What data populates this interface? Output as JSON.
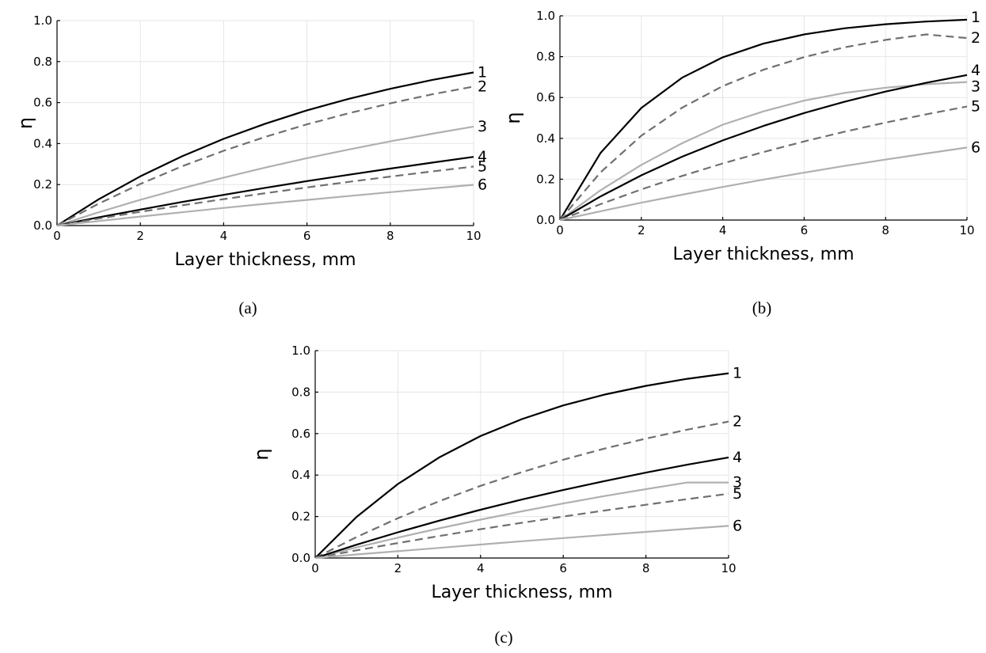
{
  "chart_data": [
    {
      "type": "line",
      "caption": "(a)",
      "xlabel": "Layer thickness, mm",
      "ylabel": "η",
      "xlim": [
        0,
        10
      ],
      "ylim": [
        0,
        1.0
      ],
      "xticks": [
        0,
        2,
        4,
        6,
        8,
        10
      ],
      "yticks": [
        0.0,
        0.2,
        0.4,
        0.6,
        0.8,
        1.0
      ],
      "xtick_labels": [
        "0",
        "2",
        "4",
        "6",
        "8",
        "10"
      ],
      "ytick_labels": [
        "0.0",
        "0.2",
        "0.4",
        "0.6",
        "0.8",
        "1.0"
      ],
      "grid": true,
      "series": [
        {
          "label": "1",
          "style": "solid",
          "color": "#000000",
          "x": [
            0,
            1,
            2,
            3,
            4,
            5,
            6,
            7,
            8,
            9,
            10
          ],
          "y": [
            0,
            0.128,
            0.24,
            0.338,
            0.423,
            0.497,
            0.562,
            0.618,
            0.667,
            0.71,
            0.747
          ]
        },
        {
          "label": "2",
          "style": "dashed",
          "color": "#707070",
          "x": [
            0,
            1,
            2,
            3,
            4,
            5,
            6,
            7,
            8,
            9,
            10
          ],
          "y": [
            0,
            0.107,
            0.203,
            0.289,
            0.365,
            0.433,
            0.494,
            0.548,
            0.596,
            0.64,
            0.678
          ]
        },
        {
          "label": "3",
          "style": "solid",
          "color": "#b0b0b0",
          "x": [
            0,
            1,
            2,
            3,
            4,
            5,
            6,
            7,
            8,
            9,
            10
          ],
          "y": [
            0,
            0.065,
            0.126,
            0.182,
            0.234,
            0.283,
            0.329,
            0.371,
            0.411,
            0.448,
            0.483
          ]
        },
        {
          "label": "4",
          "style": "solid",
          "color": "#000000",
          "x": [
            0,
            1,
            2,
            3,
            4,
            5,
            6,
            7,
            8,
            9,
            10
          ],
          "y": [
            0,
            0.04,
            0.078,
            0.115,
            0.15,
            0.184,
            0.217,
            0.248,
            0.278,
            0.307,
            0.335
          ]
        },
        {
          "label": "5",
          "style": "dashed",
          "color": "#707070",
          "x": [
            0,
            1,
            2,
            3,
            4,
            5,
            6,
            7,
            8,
            9,
            10
          ],
          "y": [
            0,
            0.034,
            0.067,
            0.099,
            0.129,
            0.158,
            0.186,
            0.213,
            0.239,
            0.264,
            0.288
          ]
        },
        {
          "label": "6",
          "style": "solid",
          "color": "#b0b0b0",
          "x": [
            0,
            1,
            2,
            3,
            4,
            5,
            6,
            7,
            8,
            9,
            10
          ],
          "y": [
            0,
            0.022,
            0.044,
            0.065,
            0.086,
            0.106,
            0.125,
            0.144,
            0.163,
            0.181,
            0.199
          ]
        }
      ]
    },
    {
      "type": "line",
      "caption": "(b)",
      "xlabel": "Layer thickness, mm",
      "ylabel": "η",
      "xlim": [
        0,
        10
      ],
      "ylim": [
        0,
        1.0
      ],
      "xticks": [
        0,
        2,
        4,
        6,
        8,
        10
      ],
      "yticks": [
        0.0,
        0.2,
        0.4,
        0.6,
        0.8,
        1.0
      ],
      "xtick_labels": [
        "0",
        "2",
        "4",
        "6",
        "8",
        "10"
      ],
      "ytick_labels": [
        "0.0",
        "0.2",
        "0.4",
        "0.6",
        "0.8",
        "1.0"
      ],
      "grid": true,
      "series": [
        {
          "label": "1",
          "style": "solid",
          "color": "#000000",
          "x": [
            0,
            1,
            2,
            3,
            4,
            5,
            6,
            7,
            8,
            9,
            10
          ],
          "y": [
            0,
            0.329,
            0.549,
            0.697,
            0.797,
            0.864,
            0.909,
            0.939,
            0.959,
            0.972,
            0.981
          ]
        },
        {
          "label": "2",
          "style": "dashed",
          "color": "#707070",
          "x": [
            0,
            1,
            2,
            3,
            4,
            5,
            6,
            7,
            8,
            9,
            10
          ],
          "y": [
            0,
            0.234,
            0.413,
            0.55,
            0.656,
            0.736,
            0.798,
            0.846,
            0.882,
            0.909,
            0.891
          ]
        },
        {
          "label": "3",
          "style": "solid",
          "color": "#b0b0b0",
          "x": [
            0,
            1,
            2,
            3,
            4,
            5,
            6,
            7,
            8,
            9,
            10
          ],
          "y": [
            0,
            0.146,
            0.27,
            0.376,
            0.467,
            0.532,
            0.585,
            0.623,
            0.648,
            0.665,
            0.676
          ]
        },
        {
          "label": "4",
          "style": "solid",
          "color": "#000000",
          "x": [
            0,
            1,
            2,
            3,
            4,
            5,
            6,
            7,
            8,
            9,
            10
          ],
          "y": [
            0,
            0.116,
            0.219,
            0.31,
            0.39,
            0.461,
            0.524,
            0.58,
            0.629,
            0.672,
            0.71
          ]
        },
        {
          "label": "5",
          "style": "dashed",
          "color": "#707070",
          "x": [
            0,
            1,
            2,
            3,
            4,
            5,
            6,
            7,
            8,
            9,
            10
          ],
          "y": [
            0,
            0.078,
            0.15,
            0.216,
            0.277,
            0.333,
            0.385,
            0.433,
            0.477,
            0.518,
            0.556
          ]
        },
        {
          "label": "6",
          "style": "solid",
          "color": "#b0b0b0",
          "x": [
            0,
            1,
            2,
            3,
            4,
            5,
            6,
            7,
            8,
            9,
            10
          ],
          "y": [
            0,
            0.043,
            0.085,
            0.124,
            0.162,
            0.198,
            0.232,
            0.265,
            0.296,
            0.326,
            0.355
          ]
        }
      ]
    },
    {
      "type": "line",
      "caption": "(c)",
      "xlabel": "Layer thickness, mm",
      "ylabel": "η",
      "xlim": [
        0,
        10
      ],
      "ylim": [
        0,
        1.0
      ],
      "xticks": [
        0,
        2,
        4,
        6,
        8,
        10
      ],
      "yticks": [
        0.0,
        0.2,
        0.4,
        0.6,
        0.8,
        1.0
      ],
      "xtick_labels": [
        "0",
        "2",
        "4",
        "6",
        "8",
        "10"
      ],
      "ytick_labels": [
        "0.0",
        "0.2",
        "0.4",
        "0.6",
        "0.8",
        "1.0"
      ],
      "grid": true,
      "series": [
        {
          "label": "1",
          "style": "solid",
          "color": "#000000",
          "x": [
            0,
            1,
            2,
            3,
            4,
            5,
            6,
            7,
            8,
            9,
            10
          ],
          "y": [
            0,
            0.198,
            0.357,
            0.485,
            0.588,
            0.67,
            0.736,
            0.788,
            0.83,
            0.864,
            0.891
          ]
        },
        {
          "label": "2",
          "style": "dashed",
          "color": "#707070",
          "x": [
            0,
            1,
            2,
            3,
            4,
            5,
            6,
            7,
            8,
            9,
            10
          ],
          "y": [
            0,
            0.101,
            0.192,
            0.274,
            0.348,
            0.414,
            0.474,
            0.528,
            0.576,
            0.619,
            0.658
          ]
        },
        {
          "label": "3",
          "style": "solid",
          "color": "#b0b0b0",
          "x": [
            0,
            1,
            2,
            3,
            4,
            5,
            6,
            7,
            8,
            9,
            10
          ],
          "y": [
            0,
            0.051,
            0.098,
            0.143,
            0.185,
            0.225,
            0.263,
            0.299,
            0.332,
            0.364,
            0.364
          ]
        },
        {
          "label": "4",
          "style": "solid",
          "color": "#000000",
          "x": [
            0,
            1,
            2,
            3,
            4,
            5,
            6,
            7,
            8,
            9,
            10
          ],
          "y": [
            0,
            0.064,
            0.124,
            0.18,
            0.233,
            0.282,
            0.328,
            0.371,
            0.412,
            0.45,
            0.485
          ]
        },
        {
          "label": "5",
          "style": "dashed",
          "color": "#707070",
          "x": [
            0,
            1,
            2,
            3,
            4,
            5,
            6,
            7,
            8,
            9,
            10
          ],
          "y": [
            0,
            0.037,
            0.072,
            0.106,
            0.139,
            0.17,
            0.2,
            0.229,
            0.257,
            0.284,
            0.31
          ]
        },
        {
          "label": "6",
          "style": "solid",
          "color": "#b0b0b0",
          "x": [
            0,
            1,
            2,
            3,
            4,
            5,
            6,
            7,
            8,
            9,
            10
          ],
          "y": [
            0,
            0.017,
            0.033,
            0.049,
            0.065,
            0.081,
            0.096,
            0.111,
            0.126,
            0.141,
            0.155
          ]
        }
      ]
    }
  ]
}
